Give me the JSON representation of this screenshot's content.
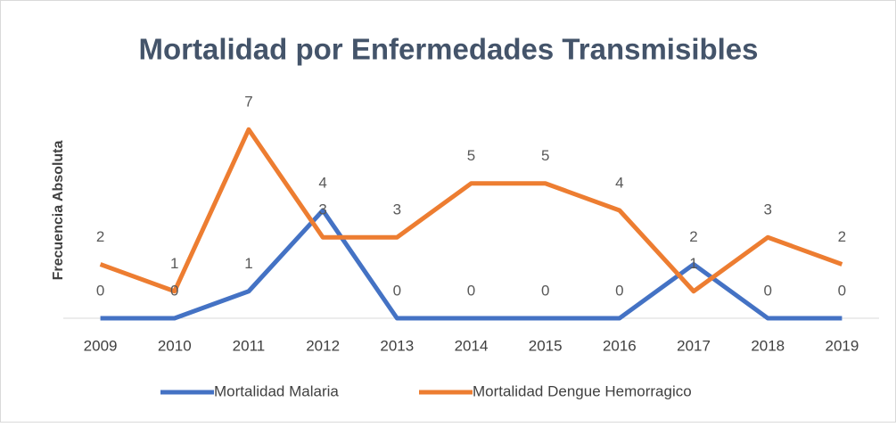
{
  "chart_data": {
    "type": "line",
    "title": "Mortalidad por Enfermedades Transmisibles",
    "y_label": "Frecuencia Absoluta",
    "categories": [
      "2009",
      "2010",
      "2011",
      "2012",
      "2013",
      "2014",
      "2015",
      "2016",
      "2017",
      "2018",
      "2019"
    ],
    "series": [
      {
        "name": "Mortalidad Malaria",
        "color": "#4472c4",
        "values": [
          0,
          0,
          1,
          4,
          0,
          0,
          0,
          0,
          2,
          0,
          0
        ]
      },
      {
        "name": "Mortalidad Dengue Hemorragico",
        "color": "#ed7d31",
        "values": [
          2,
          1,
          7,
          3,
          3,
          5,
          5,
          4,
          1,
          3,
          2
        ]
      }
    ],
    "ylim": [
      0,
      8
    ],
    "legend": "bottom"
  }
}
